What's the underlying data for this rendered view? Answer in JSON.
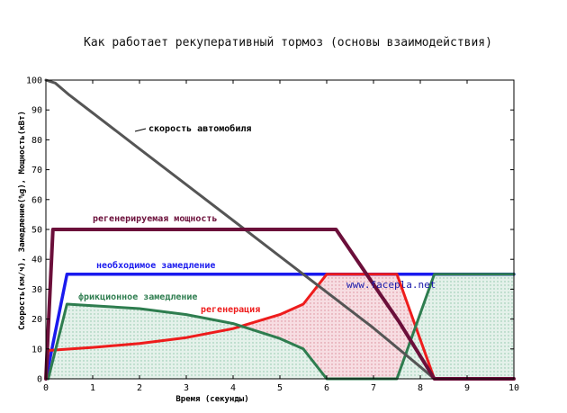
{
  "chart_data": {
    "type": "line",
    "title": "Как работает рекуперативный тормоз (основы взаимодействия)",
    "xlabel": "Время (секунды)",
    "ylabel": "Скорость(км/ч), Замедление(%g), Мощность(кВт)",
    "xlim": [
      0,
      10
    ],
    "ylim": [
      0,
      100
    ],
    "xticks": [
      "0",
      "1",
      "2",
      "3",
      "4",
      "5",
      "6",
      "7",
      "8",
      "9",
      "10"
    ],
    "yticks": [
      "0",
      "10",
      "20",
      "30",
      "40",
      "50",
      "60",
      "70",
      "80",
      "90",
      "100"
    ],
    "grid": false,
    "series": [
      {
        "name": "скорость автомобиля",
        "color": "#555555",
        "x": [
          0,
          0.2,
          0.5,
          1,
          2,
          3,
          4,
          5,
          6,
          7,
          8,
          8.3
        ],
        "y": [
          100,
          99,
          95,
          89,
          77,
          65,
          53,
          41,
          29,
          17,
          4,
          0
        ]
      },
      {
        "name": "регенерируемая мощность",
        "color": "#6b0f3a",
        "x": [
          0,
          0.15,
          6.2,
          7.2,
          7.55,
          8.3,
          10
        ],
        "y": [
          0,
          50,
          50,
          27,
          19,
          0,
          0
        ]
      },
      {
        "name": "необходимое замедление",
        "color": "#1a1aee",
        "x": [
          0,
          0.45,
          10
        ],
        "y": [
          0,
          35,
          35
        ]
      },
      {
        "name": "фрикционное замедление",
        "color": "#2e7d4f",
        "x": [
          0.05,
          0.45,
          1,
          2,
          3,
          4,
          5,
          5.5,
          6.0,
          7.5,
          8.3,
          10
        ],
        "y": [
          0,
          25,
          24.5,
          23.5,
          21.5,
          18.5,
          13.5,
          10,
          0,
          0,
          35,
          35
        ]
      },
      {
        "name": "регенерация",
        "color": "#ee1c1c",
        "x": [
          0,
          0.05,
          1,
          2,
          3,
          4,
          5,
          5.5,
          6.0,
          7.5,
          8.3,
          10
        ],
        "y": [
          0,
          9.5,
          10.5,
          11.8,
          13.8,
          16.8,
          21.5,
          25,
          35,
          35,
          0,
          0
        ]
      }
    ],
    "annotations": [
      {
        "text": "скорость автомобиля",
        "color": "#000000"
      },
      {
        "text": "регенерируемая мощность",
        "color": "#6b0f3a"
      },
      {
        "text": "необходимое замедление",
        "color": "#1a1aee"
      },
      {
        "text": "фрикционное замедление",
        "color": "#2e7d4f"
      },
      {
        "text": "регенерация",
        "color": "#ee1c1c"
      },
      {
        "text": "www.facepla.net",
        "color": "#1a1aaa"
      }
    ]
  }
}
